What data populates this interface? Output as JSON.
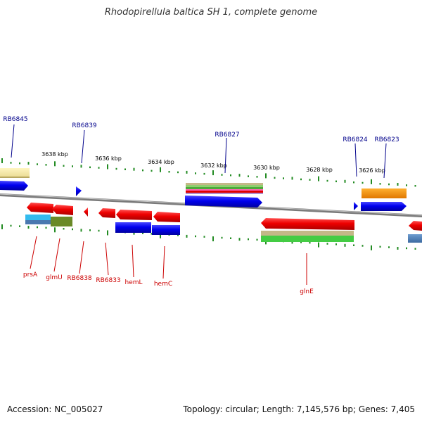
{
  "title": "Rhodopirellula baltica SH 1, complete genome",
  "accession": "Accession: NC_005027",
  "summary": "Topology: circular; Length: 7,145,576 bp; Genes: 7,405",
  "scale": {
    "ticks": [
      "3638 kbp",
      "3636 kbp",
      "3634 kbp",
      "3632 kbp",
      "3630 kbp",
      "3628 kbp",
      "3626 kbp"
    ]
  },
  "genes_top": [
    "RB6845",
    "RB6839",
    "RB6827",
    "RB6824",
    "RB6823"
  ],
  "genes_bottom": [
    "prsA",
    "glmU",
    "RB6838",
    "RB6833",
    "hemL",
    "hemC",
    "glnE"
  ],
  "colors": {
    "top_label": "#00008b",
    "bottom_label": "#cc0000",
    "scale_tick": "#228b22",
    "backbone": "#808080",
    "gene_forward": "#0000ff",
    "gene_reverse": "#ff0000"
  }
}
